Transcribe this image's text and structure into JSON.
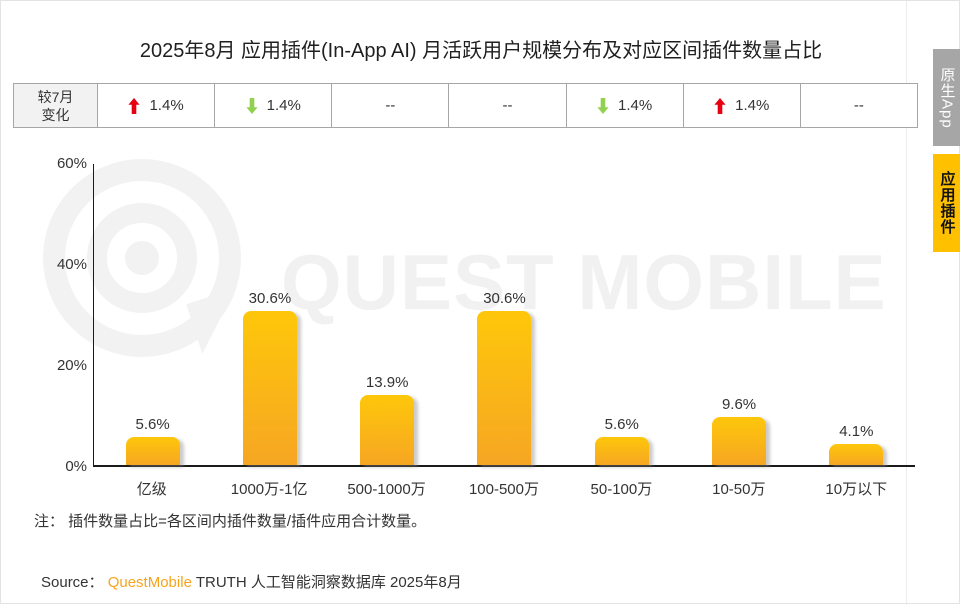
{
  "title": "2025年8月 应用插件(In-App AI) 月活跃用户规模分布及对应区间插件数量占比",
  "change_table": {
    "header_line1": "较7月",
    "header_line2": "变化",
    "cells": [
      {
        "direction": "up",
        "value": "1.4%"
      },
      {
        "direction": "down",
        "value": "1.4%"
      },
      {
        "direction": "none",
        "value": "--"
      },
      {
        "direction": "none",
        "value": "--"
      },
      {
        "direction": "down",
        "value": "1.4%"
      },
      {
        "direction": "up",
        "value": "1.4%"
      },
      {
        "direction": "none",
        "value": "--"
      }
    ]
  },
  "chart_data": {
    "type": "bar",
    "title": "2025年8月 应用插件(In-App AI) 月活跃用户规模分布及对应区间插件数量占比",
    "categories": [
      "亿级",
      "1000万-1亿",
      "500-1000万",
      "100-500万",
      "50-100万",
      "10-50万",
      "10万以下"
    ],
    "values": [
      5.6,
      30.6,
      13.9,
      30.6,
      5.6,
      9.6,
      4.1
    ],
    "value_labels": [
      "5.6%",
      "30.6%",
      "13.9%",
      "30.6%",
      "5.6%",
      "9.6%",
      "4.1%"
    ],
    "ylim": [
      0,
      60
    ],
    "yticks": [
      "60%",
      "40%",
      "20%",
      "0%"
    ],
    "grid": false,
    "legend": "none",
    "bar_color_top": "#FEC70A",
    "bar_color_bottom": "#F6A623"
  },
  "note": "注：  插件数量占比=各区间内插件数量/插件应用合计数量。",
  "source": {
    "prefix": "Source：",
    "brand": "QuestMobile",
    "suffix": " TRUTH 人工智能洞察数据库 2025年8月"
  },
  "side_tabs": [
    {
      "label": "原生App",
      "active": false
    },
    {
      "label": "应用插件",
      "active": true
    }
  ],
  "watermark": {
    "text": "QUEST MOBILE"
  },
  "colors": {
    "up_arrow": "#E60012",
    "down_arrow": "#92D050",
    "tab_inactive_bg": "#A6A6A6",
    "tab_active_bg": "#FFC000",
    "brand_orange": "#F7A41D",
    "table_border": "#A6A6A6",
    "header_bg": "#F2F2F2"
  }
}
